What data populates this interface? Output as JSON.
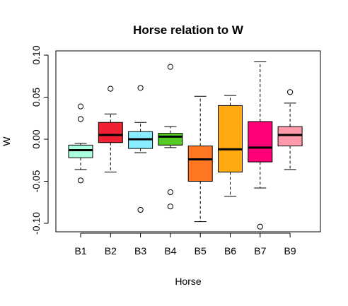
{
  "chart_data": {
    "type": "boxplot",
    "title": "Horse relation to W",
    "xlabel": "Horse",
    "ylabel": "W",
    "ylim": [
      -0.11,
      0.1
    ],
    "yticks": [
      -0.1,
      -0.05,
      0.0,
      0.05,
      0.1
    ],
    "ytick_labels": [
      "-0.10",
      "-0.05",
      "0.00",
      "0.05",
      "0.10"
    ],
    "grid": false,
    "boxes": [
      {
        "category": "B1",
        "color": "#aaffdd",
        "whisker_low": -0.036,
        "q1": -0.022,
        "median": -0.013,
        "q3": -0.007,
        "whisker_high": -0.005,
        "outliers": [
          0.039,
          0.024,
          -0.049
        ]
      },
      {
        "category": "B2",
        "color": "#ee2233",
        "whisker_low": -0.039,
        "q1": -0.004,
        "median": 0.005,
        "q3": 0.02,
        "whisker_high": 0.03,
        "outliers": [
          0.06
        ]
      },
      {
        "category": "B3",
        "color": "#88eeff",
        "whisker_low": -0.016,
        "q1": -0.011,
        "median": 0.0,
        "q3": 0.009,
        "whisker_high": 0.02,
        "outliers": [
          0.061,
          -0.084
        ]
      },
      {
        "category": "B4",
        "color": "#55cc22",
        "whisker_low": -0.01,
        "q1": -0.007,
        "median": 0.003,
        "q3": 0.007,
        "whisker_high": 0.015,
        "outliers": [
          0.086,
          -0.063,
          -0.08
        ]
      },
      {
        "category": "B5",
        "color": "#ff7722",
        "whisker_low": -0.098,
        "q1": -0.05,
        "median": -0.024,
        "q3": -0.008,
        "whisker_high": 0.051,
        "outliers": []
      },
      {
        "category": "B6",
        "color": "#ffaa11",
        "whisker_low": -0.068,
        "q1": -0.039,
        "median": -0.012,
        "q3": 0.04,
        "whisker_high": 0.052,
        "outliers": []
      },
      {
        "category": "B7",
        "color": "#ff0077",
        "whisker_low": -0.058,
        "q1": -0.027,
        "median": -0.01,
        "q3": 0.021,
        "whisker_high": 0.092,
        "outliers": [
          -0.104
        ]
      },
      {
        "category": "B9",
        "color": "#ff9aaa",
        "whisker_low": -0.036,
        "q1": -0.008,
        "median": 0.005,
        "q3": 0.015,
        "whisker_high": 0.043,
        "outliers": [
          0.056
        ]
      }
    ]
  }
}
